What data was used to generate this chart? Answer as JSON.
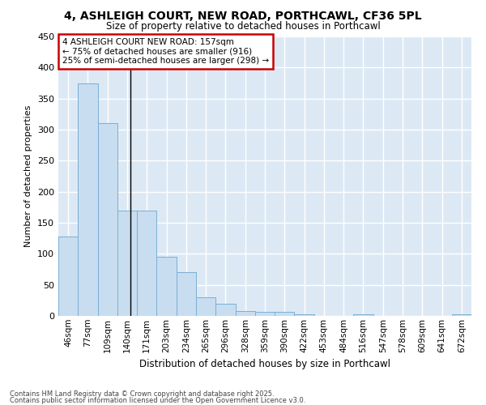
{
  "title_line1": "4, ASHLEIGH COURT, NEW ROAD, PORTHCAWL, CF36 5PL",
  "title_line2": "Size of property relative to detached houses in Porthcawl",
  "xlabel": "Distribution of detached houses by size in Porthcawl",
  "ylabel": "Number of detached properties",
  "bins": [
    "46sqm",
    "77sqm",
    "109sqm",
    "140sqm",
    "171sqm",
    "203sqm",
    "234sqm",
    "265sqm",
    "296sqm",
    "328sqm",
    "359sqm",
    "390sqm",
    "422sqm",
    "453sqm",
    "484sqm",
    "516sqm",
    "547sqm",
    "578sqm",
    "609sqm",
    "641sqm",
    "672sqm"
  ],
  "values": [
    128,
    375,
    310,
    170,
    170,
    95,
    70,
    30,
    20,
    8,
    6,
    7,
    3,
    0,
    0,
    2,
    0,
    0,
    0,
    0,
    3
  ],
  "bar_color": "#c8ddf0",
  "bar_edge_color": "#7bafd4",
  "plot_bg_color": "#dce9f5",
  "fig_bg_color": "#ffffff",
  "grid_color": "#ffffff",
  "annotation_text": "4 ASHLEIGH COURT NEW ROAD: 157sqm\n← 75% of detached houses are smaller (916)\n25% of semi-detached houses are larger (298) →",
  "annotation_box_color": "#ffffff",
  "annotation_box_edge": "#cc0000",
  "vline_x_index": 3.18,
  "footnote_line1": "Contains HM Land Registry data © Crown copyright and database right 2025.",
  "footnote_line2": "Contains public sector information licensed under the Open Government Licence v3.0.",
  "ylim": [
    0,
    450
  ],
  "yticks": [
    0,
    50,
    100,
    150,
    200,
    250,
    300,
    350,
    400,
    450
  ]
}
